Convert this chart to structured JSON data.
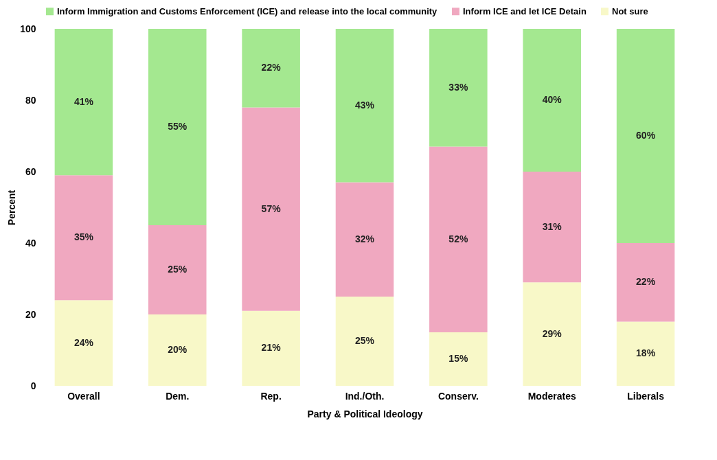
{
  "chart_data": {
    "type": "bar",
    "stacked": true,
    "xlabel": "Party & Political Ideology",
    "ylabel": "Percent",
    "categories": [
      "Overall",
      "Dem.",
      "Rep.",
      "Ind./Oth.",
      "Conserv.",
      "Moderates",
      "Liberals"
    ],
    "series": [
      {
        "name": "Not sure",
        "color": "#f8f8c8",
        "values": [
          24,
          20,
          21,
          25,
          15,
          29,
          18
        ],
        "value_labels": [
          "24%",
          "20%",
          "21%",
          "25%",
          "15%",
          "29%",
          "18%"
        ]
      },
      {
        "name": "Inform ICE and let ICE Detain",
        "color": "#f0a8c0",
        "values": [
          35,
          25,
          57,
          32,
          52,
          31,
          22
        ],
        "value_labels": [
          "35%",
          "25%",
          "57%",
          "32%",
          "52%",
          "31%",
          "22%"
        ]
      },
      {
        "name": "Inform Immigration and Customs Enforcement (ICE) and release into the local community",
        "color": "#a4e890",
        "values": [
          41,
          55,
          22,
          43,
          33,
          40,
          60
        ],
        "value_labels": [
          "41%",
          "55%",
          "22%",
          "43%",
          "33%",
          "40%",
          "60%"
        ]
      }
    ],
    "ylim": [
      0,
      100
    ],
    "yticks": [
      0,
      20,
      40,
      60,
      80,
      100
    ],
    "grid": false,
    "legend": "top left"
  }
}
